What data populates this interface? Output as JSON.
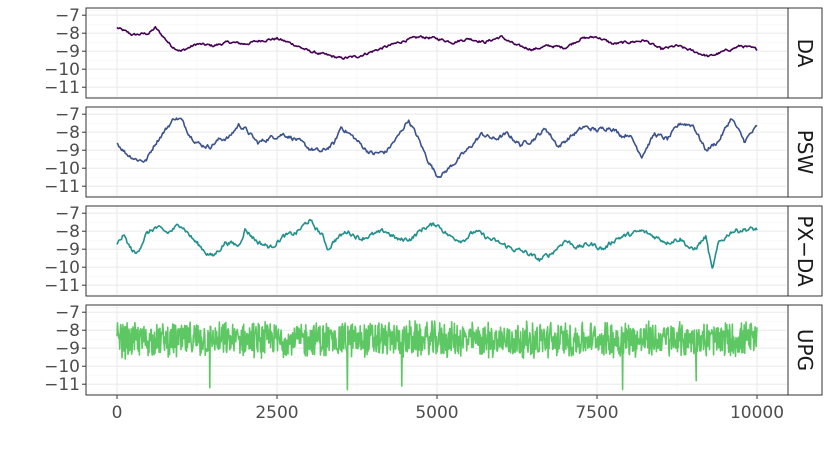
{
  "chart_data": {
    "type": "line",
    "layout": "facet-rows",
    "x": {
      "range": [
        0,
        10000
      ],
      "ticks": [
        0,
        2500,
        5000,
        7500,
        10000
      ],
      "tick_labels": [
        "0",
        "2500",
        "5000",
        "7500",
        "10000"
      ]
    },
    "y": {
      "range": [
        -11.6,
        -6.6
      ],
      "ticks": [
        -11,
        -10,
        -9,
        -8,
        -7
      ],
      "tick_labels": [
        "−11",
        "−10",
        "−9",
        "−8",
        "−7"
      ]
    },
    "grid": true,
    "legend": "none",
    "facets": [
      {
        "label": "DA",
        "color": "#440154",
        "x": [
          0,
          250,
          500,
          600,
          750,
          850,
          1000,
          1250,
          1500,
          1750,
          2000,
          2250,
          2500,
          2750,
          3000,
          3250,
          3500,
          3750,
          4000,
          4250,
          4500,
          4750,
          5000,
          5250,
          5500,
          5750,
          6000,
          6250,
          6500,
          6750,
          7000,
          7250,
          7500,
          7750,
          8000,
          8250,
          8500,
          8750,
          9000,
          9250,
          9500,
          9750,
          10000
        ],
        "values": [
          -7.7,
          -8.1,
          -8.0,
          -7.7,
          -8.3,
          -8.7,
          -9.0,
          -8.6,
          -8.7,
          -8.5,
          -8.6,
          -8.4,
          -8.3,
          -8.6,
          -9.0,
          -9.2,
          -9.4,
          -9.3,
          -9.0,
          -8.7,
          -8.4,
          -8.2,
          -8.3,
          -8.5,
          -8.3,
          -8.5,
          -8.2,
          -8.7,
          -8.9,
          -8.7,
          -8.8,
          -8.3,
          -8.2,
          -8.6,
          -8.5,
          -8.4,
          -8.9,
          -8.7,
          -9.0,
          -9.3,
          -9.0,
          -8.7,
          -8.9
        ],
        "noise": 0.12
      },
      {
        "label": "PSW",
        "color": "#3b528b",
        "x": [
          0,
          150,
          300,
          450,
          600,
          750,
          900,
          1000,
          1150,
          1300,
          1450,
          1600,
          1750,
          1900,
          2000,
          2200,
          2400,
          2600,
          2800,
          3000,
          3200,
          3400,
          3500,
          3700,
          3900,
          4000,
          4200,
          4400,
          4550,
          4700,
          4850,
          5000,
          5100,
          5300,
          5500,
          5700,
          5900,
          6100,
          6300,
          6500,
          6700,
          6900,
          7100,
          7300,
          7500,
          7700,
          7900,
          8000,
          8200,
          8400,
          8600,
          8800,
          9000,
          9200,
          9400,
          9600,
          9800,
          10000
        ],
        "values": [
          -8.6,
          -9.2,
          -9.5,
          -9.6,
          -8.6,
          -7.9,
          -7.2,
          -7.3,
          -8.2,
          -8.7,
          -8.8,
          -8.4,
          -8.3,
          -7.6,
          -7.8,
          -8.6,
          -8.3,
          -8.1,
          -8.4,
          -8.9,
          -9.1,
          -8.6,
          -7.7,
          -8.3,
          -9.0,
          -9.2,
          -9.1,
          -8.2,
          -7.3,
          -8.3,
          -9.5,
          -10.4,
          -10.3,
          -9.6,
          -8.9,
          -8.1,
          -8.4,
          -8.1,
          -8.7,
          -8.4,
          -7.8,
          -8.8,
          -8.2,
          -7.7,
          -7.9,
          -7.7,
          -8.2,
          -8.1,
          -9.3,
          -8.1,
          -8.4,
          -7.5,
          -7.6,
          -9.0,
          -8.5,
          -7.2,
          -8.5,
          -7.7
        ],
        "noise": 0.2
      },
      {
        "label": "PX−DA",
        "color": "#21908c",
        "x": [
          0,
          100,
          200,
          300,
          450,
          600,
          800,
          1000,
          1200,
          1400,
          1500,
          1700,
          1900,
          2000,
          2200,
          2400,
          2600,
          2800,
          3000,
          3200,
          3300,
          3400,
          3600,
          3800,
          4000,
          4200,
          4400,
          4600,
          4800,
          5000,
          5200,
          5400,
          5600,
          5800,
          6000,
          6200,
          6400,
          6600,
          6800,
          7000,
          7200,
          7400,
          7600,
          7800,
          8000,
          8200,
          8400,
          8600,
          8800,
          9000,
          9200,
          9300,
          9400,
          9600,
          9800,
          10000
        ],
        "values": [
          -8.8,
          -8.2,
          -8.9,
          -9.3,
          -8.2,
          -7.8,
          -8.1,
          -7.6,
          -8.5,
          -9.2,
          -9.4,
          -8.6,
          -8.8,
          -7.9,
          -8.6,
          -8.9,
          -8.3,
          -8.1,
          -7.4,
          -8.2,
          -9.0,
          -8.5,
          -8.0,
          -8.4,
          -8.2,
          -8.0,
          -8.5,
          -8.4,
          -7.8,
          -7.6,
          -8.3,
          -8.5,
          -8.0,
          -8.4,
          -8.7,
          -9.0,
          -9.2,
          -9.6,
          -9.2,
          -8.5,
          -8.9,
          -8.7,
          -9.0,
          -8.4,
          -8.2,
          -8.0,
          -8.3,
          -8.6,
          -8.4,
          -9.1,
          -8.3,
          -10.2,
          -8.7,
          -8.0,
          -7.9,
          -7.9
        ],
        "noise": 0.22
      },
      {
        "label": "UPG",
        "color": "#5dc863",
        "x": [
          0,
          2000,
          4000,
          6000,
          8000,
          10000
        ],
        "values": [
          -8.55,
          -8.55,
          -8.5,
          -8.55,
          -8.5,
          -8.55
        ],
        "noise": 0.85,
        "spikes": [
          [
            1450,
            -11.2
          ],
          [
            3600,
            -11.3
          ],
          [
            4450,
            -11.1
          ],
          [
            7900,
            -11.3
          ],
          [
            9050,
            -10.8
          ]
        ]
      }
    ]
  }
}
